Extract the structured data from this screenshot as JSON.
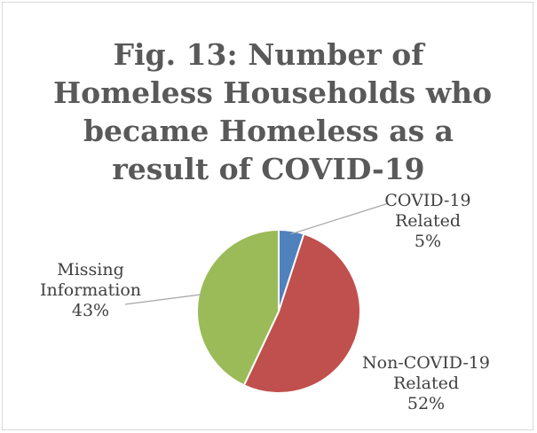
{
  "chart_data": {
    "type": "pie",
    "title_lines": [
      "Fig. 13: Number of",
      "Homeless Households who",
      "became Homeless as a",
      "result of COVID-19"
    ],
    "slices": [
      {
        "label_lines": [
          "COVID-19",
          "Related"
        ],
        "value": 5,
        "value_text": "5%",
        "color": "#4f81bd"
      },
      {
        "label_lines": [
          "Non-COVID-19",
          "Related"
        ],
        "value": 52,
        "value_text": "52%",
        "color": "#c0504d"
      },
      {
        "label_lines": [
          "Missing",
          "Information"
        ],
        "value": 43,
        "value_text": "43%",
        "color": "#9bbb59"
      }
    ],
    "start_angle_deg": 0,
    "direction": "clockwise",
    "legend": "none",
    "data_labels": "outside-with-leader-lines"
  }
}
